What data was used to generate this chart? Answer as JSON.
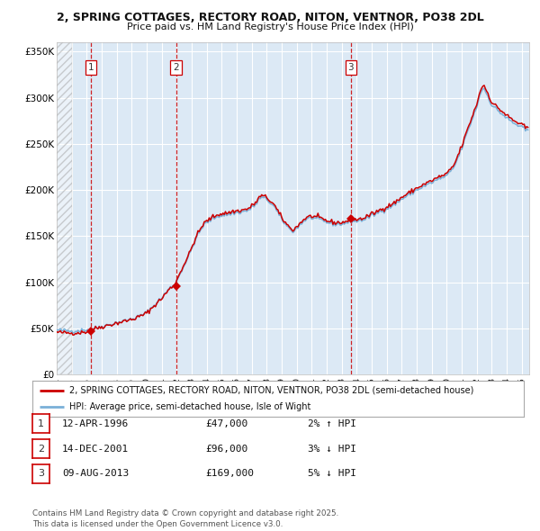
{
  "title1": "2, SPRING COTTAGES, RECTORY ROAD, NITON, VENTNOR, PO38 2DL",
  "title2": "Price paid vs. HM Land Registry's House Price Index (HPI)",
  "legend_red": "2, SPRING COTTAGES, RECTORY ROAD, NITON, VENTNOR, PO38 2DL (semi-detached house)",
  "legend_blue": "HPI: Average price, semi-detached house, Isle of Wight",
  "footer": "Contains HM Land Registry data © Crown copyright and database right 2025.\nThis data is licensed under the Open Government Licence v3.0.",
  "transactions": [
    {
      "num": 1,
      "date": "12-APR-1996",
      "price": 47000,
      "pct": "2%",
      "dir": "↑"
    },
    {
      "num": 2,
      "date": "14-DEC-2001",
      "price": 96000,
      "pct": "3%",
      "dir": "↓"
    },
    {
      "num": 3,
      "date": "09-AUG-2013",
      "price": 169000,
      "pct": "5%",
      "dir": "↓"
    }
  ],
  "transaction_dates": [
    1996.28,
    2001.95,
    2013.61
  ],
  "transaction_prices": [
    47000,
    96000,
    169000
  ],
  "ylim": [
    0,
    360000
  ],
  "yticks": [
    0,
    50000,
    100000,
    150000,
    200000,
    250000,
    300000,
    350000
  ],
  "ytick_labels": [
    "£0",
    "£50K",
    "£100K",
    "£150K",
    "£200K",
    "£250K",
    "£300K",
    "£350K"
  ],
  "xmin": 1994.0,
  "xmax": 2025.5,
  "hatch_end": 1995.0,
  "background_color": "#dce9f5",
  "red_color": "#cc0000",
  "blue_color": "#7ab0d8",
  "grid_color": "#ffffff",
  "dashed_color": "#cc0000",
  "fig_width": 6.0,
  "fig_height": 5.9,
  "dpi": 100
}
